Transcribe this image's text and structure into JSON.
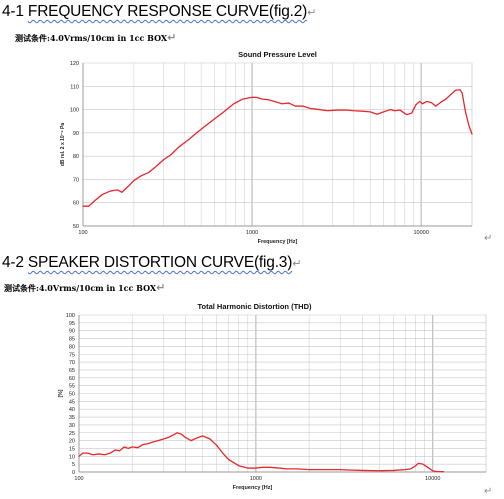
{
  "doc": {
    "heading1_prefix": "4-1 ",
    "heading1_rest": "FREQUENCY RESPONSE CURVE(fig.2)",
    "condition1": "测试条件:4.0Vrms/10cm in 1cc BOX",
    "heading2_prefix": "4-2 ",
    "heading2_rest": "SPEAKER DISTORTION CURVE(fig.3)",
    "condition2": "测试条件:4.0Vrms/10cm in 1cc BOX",
    "return_mark": "↵"
  },
  "chart_data": [
    {
      "type": "line",
      "title": "Sound Pressure Level",
      "xlabel": "Frequency [Hz]",
      "ylabel": "dB rel. 2 x 10⁻⁵ Pa",
      "xscale": "log",
      "xlim": [
        100,
        20000
      ],
      "ylim": [
        50,
        120
      ],
      "xticks": [
        100,
        1000,
        10000
      ],
      "xtick_labels": [
        "100",
        "1000",
        "10000"
      ],
      "yticks": [
        50,
        60,
        70,
        80,
        90,
        100,
        110,
        120
      ],
      "grid": true,
      "color": "#e8262c",
      "x": [
        100,
        108,
        118,
        130,
        145,
        160,
        170,
        185,
        200,
        220,
        245,
        270,
        300,
        330,
        370,
        420,
        470,
        530,
        600,
        680,
        780,
        880,
        1000,
        1070,
        1150,
        1250,
        1350,
        1500,
        1650,
        1800,
        2000,
        2200,
        2500,
        2800,
        3200,
        3600,
        4000,
        4500,
        5000,
        5500,
        6000,
        6600,
        7000,
        7500,
        8200,
        8800,
        9300,
        9800,
        10200,
        10800,
        11500,
        12200,
        13000,
        14000,
        15000,
        16000,
        17000,
        17500,
        18300,
        19200,
        20000
      ],
      "y": [
        58.5,
        58.5,
        61,
        63.5,
        65,
        65.5,
        64.5,
        67,
        69.5,
        71.5,
        73,
        75.5,
        78.5,
        80.5,
        84,
        87,
        90,
        93,
        96,
        99,
        102.5,
        104.5,
        105.3,
        105.2,
        104.5,
        104.2,
        103.5,
        102.5,
        102.8,
        101.5,
        101.5,
        100.5,
        100,
        99.5,
        99.8,
        99.8,
        99.5,
        99.3,
        99,
        98,
        99,
        100,
        99.5,
        99.8,
        97.8,
        98.5,
        102,
        103.5,
        102.5,
        103.5,
        103,
        101.5,
        103,
        104.5,
        106.5,
        108.3,
        108.5,
        107,
        99,
        93,
        89.5
      ]
    },
    {
      "type": "line",
      "title": "Total Harmonic Distortion (THD)",
      "xlabel": "Frequency [Hz]",
      "ylabel": "[%]",
      "xscale": "log",
      "xlim": [
        100,
        20000
      ],
      "ylim": [
        0,
        100
      ],
      "xticks": [
        100,
        1000,
        10000
      ],
      "xtick_labels": [
        "100",
        "1000",
        "10000"
      ],
      "yticks": [
        0,
        5,
        10,
        15,
        20,
        25,
        30,
        35,
        40,
        45,
        50,
        55,
        60,
        65,
        70,
        75,
        80,
        85,
        90,
        95,
        100
      ],
      "grid": true,
      "color": "#e8262c",
      "x": [
        100,
        105,
        112,
        120,
        130,
        140,
        150,
        160,
        170,
        180,
        190,
        200,
        215,
        230,
        245,
        260,
        280,
        300,
        320,
        340,
        360,
        380,
        400,
        430,
        460,
        500,
        550,
        600,
        650,
        700,
        800,
        900,
        1000,
        1100,
        1200,
        1350,
        1500,
        1700,
        2000,
        2500,
        3000,
        3500,
        4000,
        5000,
        6000,
        7000,
        7500,
        7900,
        8300,
        8800,
        9500,
        10000,
        10500,
        11500
      ],
      "y": [
        10,
        12,
        12,
        11,
        11.5,
        11,
        12,
        14,
        13.5,
        16,
        15,
        16,
        15.5,
        17.5,
        18,
        19,
        20,
        21,
        22,
        23.5,
        25,
        24,
        22,
        20,
        21.5,
        23,
        21,
        17,
        12,
        8,
        4,
        2.5,
        2.5,
        3,
        3,
        2.5,
        2,
        2,
        1.5,
        1.5,
        1.5,
        1.2,
        1,
        0.8,
        1,
        1.5,
        2,
        3.5,
        5.5,
        5,
        2.5,
        0.7,
        0.3,
        0.2
      ]
    }
  ]
}
